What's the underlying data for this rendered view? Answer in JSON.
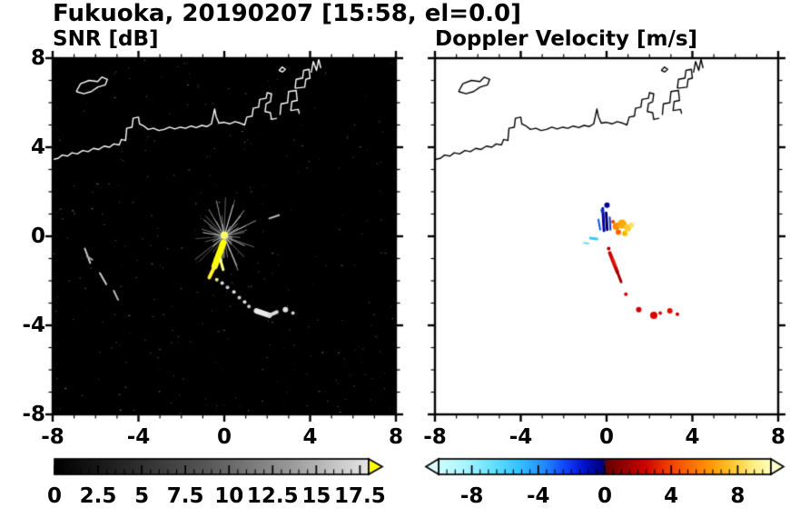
{
  "chart_data": {
    "type": "heatmap",
    "title": "Fukuoka, 20190207 [15:58, el=0.0]",
    "xlim": [
      -8,
      8
    ],
    "ylim": [
      -8,
      8
    ],
    "axis_major_ticks": [
      -8,
      -4,
      0,
      4,
      8
    ],
    "axis_minor_step": 1,
    "x_tick_labels": [
      -8,
      -4,
      0,
      4,
      8
    ],
    "y_tick_labels": [
      8,
      4,
      0,
      -4,
      -8
    ],
    "coastlines": [
      [
        [
          -8,
          3.45
        ],
        [
          -7.75,
          3.5
        ],
        [
          -7.55,
          3.65
        ],
        [
          -7.3,
          3.6
        ],
        [
          -7.1,
          3.75
        ],
        [
          -6.85,
          3.7
        ],
        [
          -6.6,
          3.85
        ],
        [
          -6.35,
          3.8
        ],
        [
          -6.1,
          3.95
        ],
        [
          -5.85,
          3.9
        ],
        [
          -5.6,
          4.05
        ],
        [
          -5.35,
          4.0
        ],
        [
          -5.15,
          4.15
        ],
        [
          -4.9,
          4.1
        ],
        [
          -4.8,
          4.35
        ],
        [
          -4.6,
          4.3
        ],
        [
          -4.55,
          4.85
        ],
        [
          -4.3,
          4.9
        ],
        [
          -4.25,
          5.3
        ],
        [
          -4.0,
          5.35
        ],
        [
          -3.95,
          5.05
        ],
        [
          -3.75,
          4.95
        ],
        [
          -3.55,
          4.8
        ],
        [
          -3.3,
          4.85
        ],
        [
          -3.05,
          4.75
        ],
        [
          -2.8,
          4.8
        ],
        [
          -2.55,
          4.9
        ],
        [
          -2.3,
          4.82
        ],
        [
          -2.05,
          4.9
        ],
        [
          -1.8,
          4.85
        ],
        [
          -1.55,
          4.95
        ],
        [
          -1.3,
          4.88
        ],
        [
          -1.05,
          4.98
        ],
        [
          -0.8,
          4.93
        ],
        [
          -0.6,
          5.05
        ],
        [
          -0.52,
          5.4
        ],
        [
          -0.45,
          5.72
        ],
        [
          -0.38,
          5.38
        ],
        [
          -0.25,
          5.08
        ],
        [
          0.0,
          5.12
        ],
        [
          0.25,
          5.05
        ],
        [
          0.5,
          5.15
        ],
        [
          0.75,
          5.08
        ],
        [
          0.95,
          5.0
        ],
        [
          1.05,
          5.35
        ],
        [
          1.3,
          5.4
        ],
        [
          1.35,
          5.75
        ],
        [
          1.6,
          5.8
        ],
        [
          1.65,
          6.15
        ],
        [
          1.95,
          6.2
        ],
        [
          2.0,
          6.45
        ],
        [
          2.2,
          6.4
        ],
        [
          2.15,
          6.05
        ],
        [
          1.95,
          5.95
        ],
        [
          1.9,
          5.6
        ],
        [
          2.15,
          5.55
        ],
        [
          2.2,
          5.25
        ],
        [
          2.45,
          5.3
        ]
      ],
      [
        [
          2.6,
          5.45
        ],
        [
          2.65,
          5.95
        ],
        [
          2.95,
          6.0
        ],
        [
          3.0,
          6.5
        ],
        [
          3.35,
          6.55
        ],
        [
          3.4,
          6.1
        ],
        [
          3.15,
          6.05
        ],
        [
          3.1,
          5.65
        ],
        [
          3.45,
          5.7
        ],
        [
          3.5,
          5.5
        ]
      ],
      [
        [
          3.3,
          6.65
        ],
        [
          3.35,
          7.05
        ],
        [
          3.65,
          7.1
        ],
        [
          3.7,
          7.45
        ],
        [
          3.95,
          7.5
        ],
        [
          4.0,
          7.1
        ],
        [
          3.8,
          7.05
        ],
        [
          3.75,
          6.7
        ],
        [
          3.3,
          6.65
        ]
      ],
      [
        [
          4.05,
          7.35
        ],
        [
          4.15,
          7.85
        ],
        [
          4.3,
          7.45
        ],
        [
          4.4,
          7.95
        ],
        [
          4.5,
          7.55
        ]
      ],
      [
        [
          -6.9,
          6.5
        ],
        [
          -6.7,
          6.85
        ],
        [
          -6.3,
          7.0
        ],
        [
          -5.9,
          6.95
        ],
        [
          -5.7,
          7.15
        ],
        [
          -5.45,
          7.05
        ],
        [
          -5.55,
          6.8
        ],
        [
          -5.9,
          6.7
        ],
        [
          -6.2,
          6.5
        ],
        [
          -6.55,
          6.4
        ],
        [
          -6.9,
          6.5
        ]
      ],
      [
        [
          2.55,
          7.45
        ],
        [
          2.7,
          7.6
        ],
        [
          2.85,
          7.5
        ],
        [
          2.7,
          7.38
        ],
        [
          2.55,
          7.45
        ]
      ]
    ],
    "panels": [
      {
        "id": "snr",
        "title": "SNR [dB]",
        "bg": "#000000",
        "coast_color": "#ffffff",
        "spokes": {
          "count": 54,
          "color": "#d2d2d2"
        },
        "noise": {
          "count": 300
        },
        "markers": [
          {
            "t": "dot",
            "x": 0.0,
            "y": 0.05,
            "r": 4,
            "c": "#ffff66"
          },
          {
            "t": "streak",
            "x1": -0.05,
            "y1": -0.3,
            "x2": -0.45,
            "y2": -1.35,
            "w": 7,
            "c": "#ffff00"
          },
          {
            "t": "streak",
            "x1": -0.45,
            "y1": -1.35,
            "x2": -0.7,
            "y2": -1.85,
            "w": 4,
            "c": "#ffee33"
          },
          {
            "t": "streak",
            "x1": -0.2,
            "y1": -1.0,
            "x2": -0.05,
            "y2": -1.5,
            "w": 3,
            "c": "#ffff88"
          },
          {
            "t": "dot",
            "x": -0.35,
            "y": -1.95,
            "r": 2,
            "c": "#eeee88"
          },
          {
            "t": "dot",
            "x": -0.1,
            "y": -2.1,
            "r": 2,
            "c": "#dddddd"
          },
          {
            "t": "dot",
            "x": 0.15,
            "y": -2.3,
            "r": 2,
            "c": "#cccccc"
          },
          {
            "t": "dot",
            "x": 0.45,
            "y": -2.5,
            "r": 2,
            "c": "#dddddd"
          },
          {
            "t": "dot",
            "x": 0.7,
            "y": -2.75,
            "r": 2,
            "c": "#cccccc"
          },
          {
            "t": "dot",
            "x": 0.95,
            "y": -2.95,
            "r": 2,
            "c": "#dddddd"
          },
          {
            "t": "dot",
            "x": 1.15,
            "y": -3.15,
            "r": 2,
            "c": "#cccccc"
          },
          {
            "t": "streak",
            "x1": 1.5,
            "y1": -3.35,
            "x2": 2.1,
            "y2": -3.55,
            "w": 6,
            "c": "#e8e8e8"
          },
          {
            "t": "streak",
            "x1": 2.1,
            "y1": -3.55,
            "x2": 2.45,
            "y2": -3.4,
            "w": 4,
            "c": "#d8d8d8"
          },
          {
            "t": "dot",
            "x": 2.85,
            "y": -3.3,
            "r": 3,
            "c": "#e0e0e0"
          },
          {
            "t": "dot",
            "x": 3.2,
            "y": -3.45,
            "r": 2,
            "c": "#cccccc"
          },
          {
            "t": "streak",
            "x1": -6.5,
            "y1": -0.55,
            "x2": -6.25,
            "y2": -1.2,
            "w": 2,
            "c": "#cccccc"
          },
          {
            "t": "streak",
            "x1": -6.4,
            "y1": -0.9,
            "x2": -6.15,
            "y2": -1.05,
            "w": 2,
            "c": "#aaaaaa"
          },
          {
            "t": "streak",
            "x1": -5.8,
            "y1": -1.65,
            "x2": -5.5,
            "y2": -2.15,
            "w": 2,
            "c": "#cccccc"
          },
          {
            "t": "streak",
            "x1": -5.15,
            "y1": -2.45,
            "x2": -4.95,
            "y2": -2.85,
            "w": 2,
            "c": "#bbbbbb"
          },
          {
            "t": "streak",
            "x1": 2.1,
            "y1": 0.8,
            "x2": 2.55,
            "y2": 0.95,
            "w": 2,
            "c": "#bbbbbb"
          }
        ],
        "colorbar": {
          "min": 0,
          "max": 18,
          "minor_step": 0.5,
          "label_step": 2.5,
          "labels": [
            0,
            2.5,
            5,
            7.5,
            10,
            12.5,
            15,
            17.5
          ],
          "gradient": [
            [
              0,
              "#000000"
            ],
            [
              0.25,
              "#2b2b2b"
            ],
            [
              0.5,
              "#5a5a5a"
            ],
            [
              0.75,
              "#999999"
            ],
            [
              1,
              "#e6e6e6"
            ]
          ],
          "over_color": "#ffff00",
          "arrows": "right"
        }
      },
      {
        "id": "doppler",
        "title": "Doppler Velocity [m/s]",
        "bg": "#ffffff",
        "coast_color": "#000000",
        "markers": [
          {
            "t": "streak",
            "x1": -0.12,
            "y1": 0.25,
            "x2": -0.18,
            "y2": 1.25,
            "w": 3,
            "c": "#0000aa"
          },
          {
            "t": "streak",
            "x1": 0.03,
            "y1": 0.3,
            "x2": -0.02,
            "y2": 1.05,
            "w": 3,
            "c": "#000077"
          },
          {
            "t": "streak",
            "x1": 0.18,
            "y1": 0.3,
            "x2": 0.15,
            "y2": 0.85,
            "w": 2,
            "c": "#2233cc"
          },
          {
            "t": "streak",
            "x1": -0.3,
            "y1": 0.3,
            "x2": -0.38,
            "y2": 0.75,
            "w": 2,
            "c": "#0055ee"
          },
          {
            "t": "dot",
            "x": 0.02,
            "y": 1.4,
            "r": 3,
            "c": "#000099"
          },
          {
            "t": "dot",
            "x": -0.2,
            "y": 1.15,
            "r": 2,
            "c": "#0033cc"
          },
          {
            "t": "streak",
            "x1": -0.75,
            "y1": -0.08,
            "x2": -0.45,
            "y2": -0.12,
            "w": 3,
            "c": "#33ccff"
          },
          {
            "t": "streak",
            "x1": -1.05,
            "y1": -0.3,
            "x2": -0.85,
            "y2": -0.33,
            "w": 2,
            "c": "#66ddff"
          },
          {
            "t": "dot",
            "x": 0.45,
            "y": 0.45,
            "r": 4,
            "c": "#ff8800"
          },
          {
            "t": "dot",
            "x": 0.72,
            "y": 0.55,
            "r": 5,
            "c": "#ffaa00"
          },
          {
            "t": "dot",
            "x": 0.98,
            "y": 0.38,
            "r": 4,
            "c": "#ffcc33"
          },
          {
            "t": "dot",
            "x": 0.55,
            "y": 0.18,
            "r": 3,
            "c": "#ff6600"
          },
          {
            "t": "dot",
            "x": 0.85,
            "y": 0.12,
            "r": 3,
            "c": "#ffbb00"
          },
          {
            "t": "dot",
            "x": 1.15,
            "y": 0.5,
            "r": 3,
            "c": "#ffdd66"
          },
          {
            "t": "dot",
            "x": 0.3,
            "y": 0.65,
            "r": 2,
            "c": "#dd4400"
          },
          {
            "t": "streak",
            "x1": 0.15,
            "y1": -0.75,
            "x2": 0.5,
            "y2": -1.6,
            "w": 4,
            "c": "#cc0000"
          },
          {
            "t": "streak",
            "x1": 0.5,
            "y1": -1.6,
            "x2": 0.68,
            "y2": -2.05,
            "w": 3,
            "c": "#990000"
          },
          {
            "t": "streak",
            "x1": 0.3,
            "y1": -1.0,
            "x2": 0.42,
            "y2": -1.3,
            "w": 2,
            "c": "#ee2200"
          },
          {
            "t": "dot",
            "x": 0.1,
            "y": -0.55,
            "r": 2,
            "c": "#aa0000"
          },
          {
            "t": "dot",
            "x": 0.9,
            "y": -2.6,
            "r": 2,
            "c": "#cc0000"
          },
          {
            "t": "dot",
            "x": 1.5,
            "y": -3.3,
            "r": 3,
            "c": "#cc0000"
          },
          {
            "t": "dot",
            "x": 2.2,
            "y": -3.55,
            "r": 4,
            "c": "#dd0000"
          },
          {
            "t": "dot",
            "x": 2.5,
            "y": -3.45,
            "r": 2,
            "c": "#cc1100"
          },
          {
            "t": "dot",
            "x": 2.95,
            "y": -3.35,
            "r": 3,
            "c": "#dd1100"
          },
          {
            "t": "dot",
            "x": 3.3,
            "y": -3.5,
            "r": 2,
            "c": "#bb0000"
          }
        ],
        "colorbar": {
          "min": -10,
          "max": 10,
          "minor_step": 0.5,
          "label_step": 4,
          "labels": [
            -8,
            -4,
            0,
            4,
            8
          ],
          "gradient": [
            [
              0.0,
              "#ccffff"
            ],
            [
              0.08,
              "#aaf4ff"
            ],
            [
              0.16,
              "#66e2ff"
            ],
            [
              0.24,
              "#33c4ff"
            ],
            [
              0.32,
              "#2288ff"
            ],
            [
              0.38,
              "#1144ff"
            ],
            [
              0.44,
              "#0011cc"
            ],
            [
              0.495,
              "#000077"
            ],
            [
              0.505,
              "#660000"
            ],
            [
              0.56,
              "#990000"
            ],
            [
              0.62,
              "#cc0000"
            ],
            [
              0.68,
              "#ee3300"
            ],
            [
              0.75,
              "#ff6600"
            ],
            [
              0.82,
              "#ff9900"
            ],
            [
              0.89,
              "#ffcc33"
            ],
            [
              0.95,
              "#ffee88"
            ],
            [
              1.0,
              "#ffffbb"
            ]
          ],
          "under_color": "#ddffff",
          "over_color": "#ffffcc",
          "arrows": "both"
        }
      }
    ]
  }
}
